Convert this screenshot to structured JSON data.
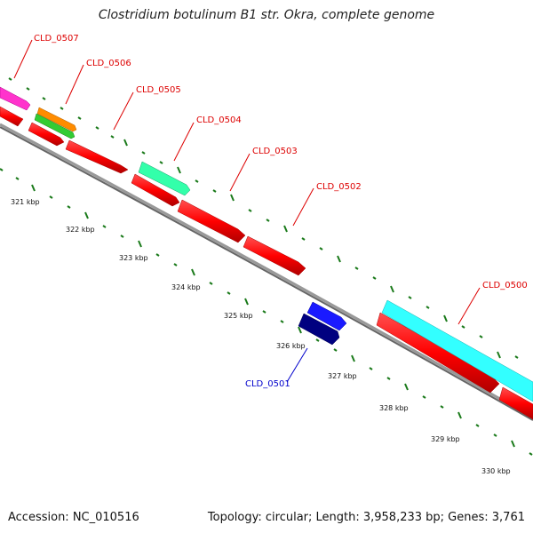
{
  "title": "Clostridium botulinum B1 str. Okra, complete genome",
  "accession": "Accession: NC_010516",
  "summary": "Topology: circular; Length: 3,958,233 bp; Genes: 3,761",
  "colors": {
    "backbone": "#888888",
    "tick": "#1a7a1a",
    "gene": "#ff0000",
    "label_red": "#dd0000",
    "label_blue": "#0000cc"
  },
  "kbp_labels": [
    "321 kbp",
    "322 kbp",
    "323 kbp",
    "324 kbp",
    "325 kbp",
    "326 kbp",
    "327 kbp",
    "328 kbp",
    "329 kbp",
    "330 kbp"
  ],
  "gene_labels": [
    "CLD_0507",
    "CLD_0506",
    "CLD_0505",
    "CLD_0504",
    "CLD_0503",
    "CLD_0502",
    "CLD_0500",
    "CLD_0501"
  ]
}
